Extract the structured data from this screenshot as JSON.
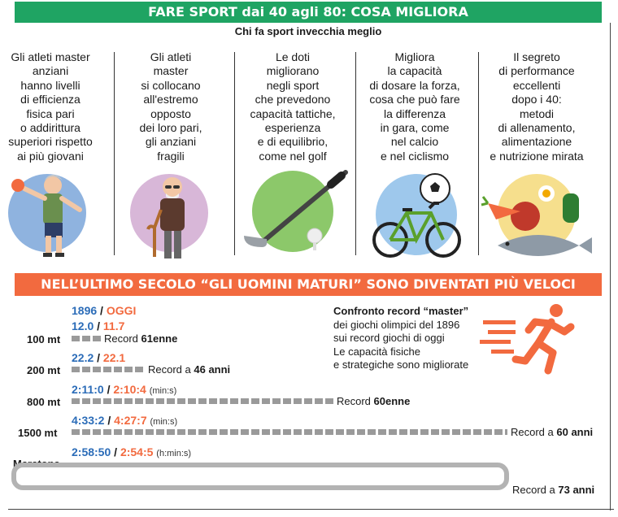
{
  "header": {
    "title": "FARE SPORT dai 40 agli 80: COSA MIGLIORA",
    "subtitle": "Chi fa sport invecchia meglio"
  },
  "columns": [
    {
      "icon": "athlete-with-ball-icon",
      "lines": [
        "Gli atleti master",
        "anziani",
        "hanno livelli",
        "di efficienza",
        "fisica pari",
        "o addirittura",
        "superiori rispetto",
        "ai più giovani"
      ],
      "circle_color": "#8fb3df"
    },
    {
      "icon": "elderly-man-with-cane-icon",
      "lines": [
        "Gli atleti",
        "master",
        "si collocano",
        "all'estremo",
        "opposto",
        "dei loro pari,",
        "gli anziani",
        "fragili"
      ],
      "circle_color": "#d8b7d8"
    },
    {
      "icon": "golf-club-icon",
      "lines": [
        "Le doti",
        "migliorano",
        "negli sport",
        "che prevedono",
        "capacità tattiche,",
        "esperienza",
        "e di equilibrio,",
        "come nel golf"
      ],
      "circle_color": "#8cc86a"
    },
    {
      "icon": "bicycle-and-soccer-ball-icon",
      "lines": [
        "Migliora",
        "la capacità",
        "di dosare la forza,",
        "cosa che può fare",
        "la differenza",
        "in gara, come",
        "nel calcio",
        "e nel ciclismo"
      ],
      "circle_color": "#9ec8ec"
    },
    {
      "icon": "food-and-fish-icon",
      "lines": [
        "Il segreto",
        "di performance",
        "eccellenti",
        "dopo i 40:",
        "metodi",
        "di allenamento,",
        "alimentazione",
        "e nutrizione mirata"
      ],
      "circle_color": "#f6df8d"
    }
  ],
  "records_banner": "NELL’ULTIMO SECOLO “GLI UOMINI MATURI” SONO DIVENTATI PIÙ VELOCI",
  "legend": {
    "year_1896": "1896",
    "sep": "/",
    "today": "OGGI"
  },
  "records": [
    {
      "event": "100 mt",
      "time_1896": "12.0",
      "time_today": "11.7",
      "unit": "",
      "record_prefix": "Record ",
      "record_value": "61enne",
      "record_suffix": ""
    },
    {
      "event": "200 mt",
      "time_1896": "22.2",
      "time_today": "22.1",
      "unit": "",
      "record_prefix": "Record a ",
      "record_value": "46 anni",
      "record_suffix": ""
    },
    {
      "event": "800 mt",
      "time_1896": "2:11:0",
      "time_today": "2:10:4",
      "unit": "(min:s)",
      "record_prefix": "Record ",
      "record_value": "60enne",
      "record_suffix": ""
    },
    {
      "event": "1500 mt",
      "time_1896": "4:33:2",
      "time_today": "4:27:7",
      "unit": "(min:s)",
      "record_prefix": "Record a ",
      "record_value": "60 anni",
      "record_suffix": ""
    },
    {
      "event": "Maratona",
      "time_1896": "2:58:50",
      "time_today": "2:54:5",
      "unit": "(h:min:s)",
      "record_prefix": "Record a ",
      "record_value": "73 anni",
      "record_suffix": ""
    }
  ],
  "comparison": {
    "title": "Confronto record “master”",
    "lines": [
      "dei giochi olimpici del 1896",
      "sui record giochi di oggi",
      "Le capacità fisiche",
      "e strategiche sono migliorate"
    ]
  },
  "colors": {
    "green": "#1fa463",
    "orange": "#f26a3f",
    "blue": "#2b6cb8",
    "dash": "#9a9a9a"
  },
  "runner_icon": "running-man-icon"
}
